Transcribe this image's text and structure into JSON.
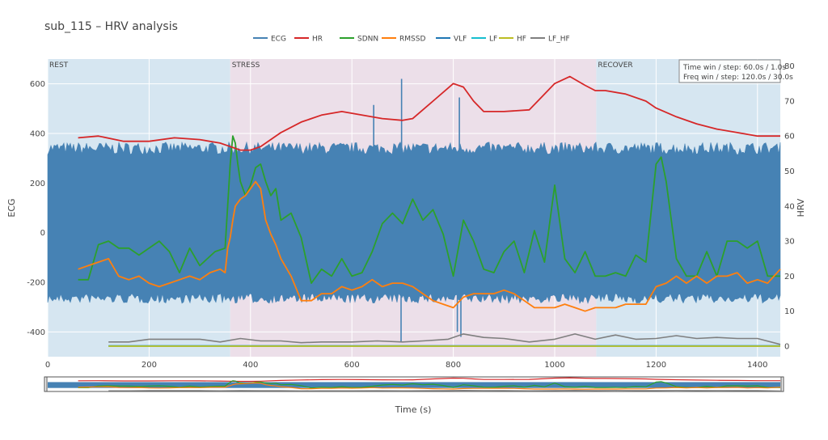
{
  "chart_data": {
    "type": "line",
    "title": "sub_115 – HRV analysis",
    "xlabel": "Time (s)",
    "ylabel_left": "ECG",
    "ylabel_right": "HRV",
    "xlim": [
      0,
      1445
    ],
    "ylim_left": [
      -500,
      700
    ],
    "ylim_right": [
      -3,
      82
    ],
    "x_ticks": [
      0,
      200,
      400,
      600,
      800,
      1000,
      1200,
      1400
    ],
    "y_left_ticks": [
      -400,
      -200,
      0,
      200,
      400,
      600
    ],
    "y_right_ticks": [
      0,
      10,
      20,
      30,
      40,
      50,
      60,
      70,
      80
    ],
    "grid": true,
    "legend_position": "top-center",
    "legend": [
      {
        "name": "ECG",
        "color": "#4682b4"
      },
      {
        "name": "HR",
        "color": "#d62728"
      },
      {
        "name": "SDNN",
        "color": "#2ca02c"
      },
      {
        "name": "RMSSD",
        "color": "#ff7f0e"
      },
      {
        "name": "VLF",
        "color": "#1f77b4"
      },
      {
        "name": "LF",
        "color": "#17becf"
      },
      {
        "name": "HF",
        "color": "#bcbd22"
      },
      {
        "name": "LF_HF",
        "color": "#7f7f7f"
      }
    ],
    "phases": [
      {
        "label": "REST",
        "start": 0,
        "end": 360,
        "color": "#d6e6f1"
      },
      {
        "label": "STRESS",
        "start": 360,
        "end": 1082,
        "color": "#ecdfe9"
      },
      {
        "label": "RECOVER",
        "start": 1082,
        "end": 1445,
        "color": "#d6e6f1"
      }
    ],
    "annotation": [
      "Time win / step: 60.0s / 1.0s",
      "Freq win / step: 120.0s / 30.0s"
    ],
    "ecg_band": {
      "upper": 340,
      "lower": -265
    },
    "ecg_spikes": [
      {
        "x": 643,
        "y": 515
      },
      {
        "x": 697,
        "y": -440
      },
      {
        "x": 698,
        "y": 620
      },
      {
        "x": 808,
        "y": -400
      },
      {
        "x": 812,
        "y": 545
      },
      {
        "x": 815,
        "y": -420
      }
    ],
    "series": [
      {
        "name": "HR",
        "axis": "right",
        "x": [
          60,
          100,
          150,
          200,
          250,
          300,
          340,
          360,
          380,
          400,
          420,
          460,
          500,
          540,
          580,
          620,
          660,
          700,
          720,
          760,
          800,
          820,
          840,
          860,
          900,
          950,
          1000,
          1030,
          1060,
          1080,
          1100,
          1140,
          1180,
          1200,
          1240,
          1280,
          1320,
          1360,
          1400,
          1445
        ],
        "y": [
          59.5,
          60,
          58.5,
          58.5,
          59.5,
          59,
          58,
          57,
          56,
          56,
          57,
          61,
          64,
          66,
          67,
          66,
          65,
          64.5,
          65,
          70,
          75,
          74,
          70,
          67,
          67,
          67.5,
          75,
          77,
          74.5,
          73,
          73,
          72,
          70,
          68,
          65.5,
          63.5,
          62,
          61,
          60,
          60
        ]
      },
      {
        "name": "SDNN",
        "axis": "right",
        "x": [
          60,
          80,
          100,
          120,
          140,
          160,
          180,
          200,
          220,
          240,
          260,
          280,
          300,
          330,
          350,
          360,
          365,
          370,
          375,
          380,
          390,
          400,
          410,
          420,
          430,
          440,
          450,
          460,
          480,
          500,
          520,
          540,
          560,
          580,
          600,
          620,
          640,
          660,
          680,
          700,
          720,
          740,
          760,
          780,
          800,
          820,
          840,
          860,
          880,
          900,
          920,
          940,
          960,
          980,
          1000,
          1020,
          1040,
          1060,
          1080,
          1100,
          1120,
          1140,
          1160,
          1180,
          1200,
          1210,
          1220,
          1240,
          1260,
          1280,
          1300,
          1320,
          1340,
          1360,
          1380,
          1400,
          1420,
          1445
        ],
        "y": [
          19,
          19,
          29,
          30,
          28,
          28,
          26,
          28,
          30,
          27,
          21,
          28,
          23,
          27,
          28,
          52,
          60,
          58,
          52,
          47,
          43,
          46,
          51,
          52,
          47,
          43,
          45,
          36,
          38,
          31,
          18,
          22,
          20,
          25,
          20,
          21,
          27,
          35,
          38,
          35,
          42,
          36,
          39,
          32,
          20,
          36,
          30,
          22,
          21,
          27,
          30,
          21,
          33,
          24,
          46,
          25,
          21,
          27,
          20,
          20,
          21,
          20,
          26,
          24,
          52,
          54,
          47,
          25,
          20,
          20,
          27,
          20,
          30,
          30,
          28,
          30,
          20,
          20
        ]
      },
      {
        "name": "RMSSD",
        "axis": "right",
        "x": [
          60,
          80,
          100,
          120,
          140,
          160,
          180,
          200,
          220,
          240,
          260,
          280,
          300,
          320,
          340,
          350,
          355,
          360,
          365,
          370,
          380,
          390,
          400,
          410,
          420,
          430,
          440,
          450,
          460,
          480,
          500,
          520,
          540,
          560,
          580,
          600,
          620,
          640,
          660,
          680,
          700,
          720,
          740,
          760,
          780,
          800,
          820,
          840,
          860,
          880,
          900,
          920,
          940,
          960,
          980,
          1000,
          1020,
          1040,
          1060,
          1080,
          1100,
          1120,
          1140,
          1160,
          1180,
          1200,
          1220,
          1240,
          1260,
          1280,
          1300,
          1320,
          1340,
          1360,
          1380,
          1400,
          1420,
          1445
        ],
        "y": [
          22,
          23,
          24,
          25,
          20,
          19,
          20,
          18,
          17,
          18,
          19,
          20,
          19,
          21,
          22,
          21,
          28,
          31,
          36,
          40,
          42,
          43,
          45,
          47,
          45,
          36,
          32,
          29,
          25,
          20,
          13,
          13,
          15,
          15,
          17,
          16,
          17,
          19,
          17,
          18,
          18,
          17,
          15,
          13,
          12,
          11,
          14,
          15,
          15,
          15,
          16,
          15,
          13,
          11,
          11,
          11,
          12,
          11,
          10,
          11,
          11,
          11,
          12,
          12,
          12,
          17,
          18,
          20,
          18,
          20,
          18,
          20,
          20,
          21,
          18,
          19,
          18,
          22
        ]
      },
      {
        "name": "LF_HF",
        "axis": "right",
        "x": [
          120,
          160,
          200,
          260,
          300,
          340,
          380,
          420,
          460,
          500,
          540,
          600,
          650,
          700,
          740,
          790,
          820,
          860,
          900,
          950,
          1000,
          1040,
          1080,
          1120,
          1160,
          1200,
          1240,
          1280,
          1320,
          1360,
          1400,
          1445
        ],
        "y": [
          1.2,
          1.2,
          2,
          2,
          2,
          1.2,
          2.2,
          1.5,
          1.5,
          1,
          1.2,
          1.2,
          1.5,
          1.2,
          1.5,
          2,
          3.5,
          2.5,
          2.2,
          1.2,
          2,
          3.5,
          2,
          3.2,
          2,
          2.2,
          3,
          2.2,
          2.5,
          2.2,
          2.2,
          0.5
        ]
      },
      {
        "name": "VLF",
        "axis": "right",
        "x": [
          120,
          1445
        ],
        "y": [
          0.1,
          0.1
        ]
      },
      {
        "name": "LF",
        "axis": "right",
        "x": [
          120,
          1445
        ],
        "y": [
          0.05,
          0.05
        ]
      },
      {
        "name": "HF",
        "axis": "right",
        "x": [
          120,
          1445
        ],
        "y": [
          0,
          0
        ]
      }
    ]
  }
}
